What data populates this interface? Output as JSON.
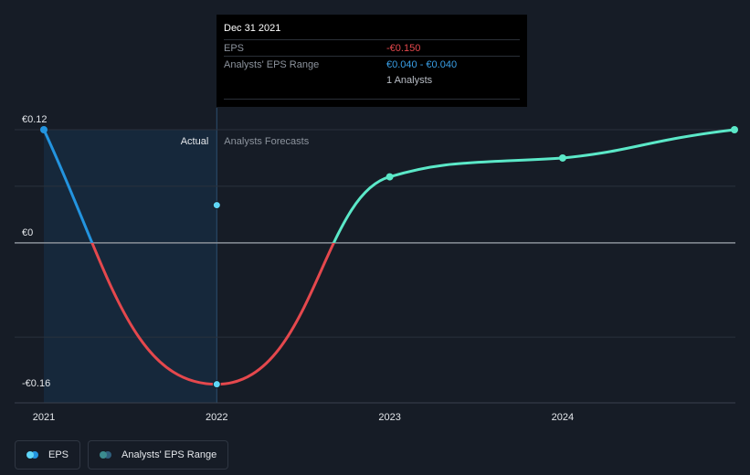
{
  "chart_data": {
    "type": "line",
    "x_ticks": [
      "2021",
      "2022",
      "2023",
      "2024"
    ],
    "y_ticks": [
      {
        "value": 0.12,
        "label": "€0.12"
      },
      {
        "value": 0,
        "label": "€0"
      },
      {
        "value": -0.16,
        "label": "-€0.16"
      }
    ],
    "ylim": [
      -0.16,
      0.12
    ],
    "section_labels": {
      "actual": "Actual",
      "forecast": "Analysts Forecasts"
    },
    "series": [
      {
        "name": "EPS",
        "points": [
          {
            "x": "Dec 31 2020",
            "y": 0.12
          },
          {
            "x": "Dec 31 2021",
            "y": -0.15
          }
        ]
      },
      {
        "name": "Analysts' EPS Range",
        "points": [
          {
            "x": "Dec 31 2021",
            "y": 0.04
          }
        ]
      },
      {
        "name": "Analysts Forecasts",
        "points": [
          {
            "x": "Dec 31 2022",
            "y": 0.07
          },
          {
            "x": "Dec 31 2023",
            "y": 0.09
          },
          {
            "x": "Dec 31 2024",
            "y": 0.12
          }
        ]
      }
    ],
    "colors": {
      "eps_positive": "#2394df",
      "eps_negative": "#e5484d",
      "forecast": "#5be8c8",
      "range_dot": "#3aa0e8",
      "actual_band": "#162a40"
    },
    "grid": true
  },
  "tooltip": {
    "date": "Dec 31 2021",
    "eps_label": "EPS",
    "eps_value": "-€0.150",
    "range_label": "Analysts' EPS Range",
    "range_value": "€0.040 - €0.040",
    "analysts": "1 Analysts"
  },
  "legend": [
    {
      "label": "EPS",
      "color1": "#5fd6f7",
      "color2": "#2394df"
    },
    {
      "label": "Analysts' EPS Range",
      "color1": "#3b8b8f",
      "color2": "#2f5f7d"
    }
  ]
}
